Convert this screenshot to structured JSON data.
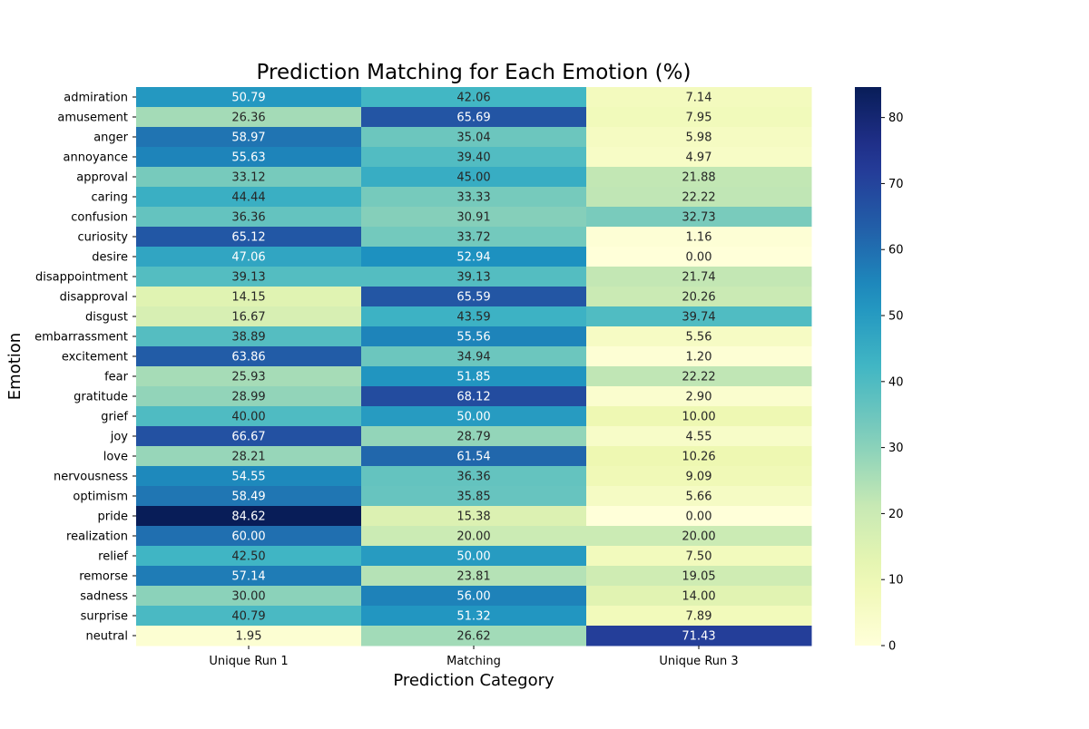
{
  "chart_data": {
    "type": "heatmap",
    "title": "Prediction Matching for Each Emotion (%)",
    "xlabel": "Prediction Category",
    "ylabel": "Emotion",
    "columns": [
      "Unique Run 1",
      "Matching",
      "Unique Run 3"
    ],
    "rows": [
      "admiration",
      "amusement",
      "anger",
      "annoyance",
      "approval",
      "caring",
      "confusion",
      "curiosity",
      "desire",
      "disappointment",
      "disapproval",
      "disgust",
      "embarrassment",
      "excitement",
      "fear",
      "gratitude",
      "grief",
      "joy",
      "love",
      "nervousness",
      "optimism",
      "pride",
      "realization",
      "relief",
      "remorse",
      "sadness",
      "surprise",
      "neutral"
    ],
    "values": [
      [
        50.79,
        42.06,
        7.14
      ],
      [
        26.36,
        65.69,
        7.95
      ],
      [
        58.97,
        35.04,
        5.98
      ],
      [
        55.63,
        39.4,
        4.97
      ],
      [
        33.12,
        45.0,
        21.88
      ],
      [
        44.44,
        33.33,
        22.22
      ],
      [
        36.36,
        30.91,
        32.73
      ],
      [
        65.12,
        33.72,
        1.16
      ],
      [
        47.06,
        52.94,
        0.0
      ],
      [
        39.13,
        39.13,
        21.74
      ],
      [
        14.15,
        65.59,
        20.26
      ],
      [
        16.67,
        43.59,
        39.74
      ],
      [
        38.89,
        55.56,
        5.56
      ],
      [
        63.86,
        34.94,
        1.2
      ],
      [
        25.93,
        51.85,
        22.22
      ],
      [
        28.99,
        68.12,
        2.9
      ],
      [
        40.0,
        50.0,
        10.0
      ],
      [
        66.67,
        28.79,
        4.55
      ],
      [
        28.21,
        61.54,
        10.26
      ],
      [
        54.55,
        36.36,
        9.09
      ],
      [
        58.49,
        35.85,
        5.66
      ],
      [
        84.62,
        15.38,
        0.0
      ],
      [
        60.0,
        20.0,
        20.0
      ],
      [
        42.5,
        50.0,
        7.5
      ],
      [
        57.14,
        23.81,
        19.05
      ],
      [
        30.0,
        56.0,
        14.0
      ],
      [
        40.79,
        51.32,
        7.89
      ],
      [
        1.95,
        26.62,
        71.43
      ]
    ],
    "colorbar": {
      "min": 0,
      "max": 84.62,
      "ticks": [
        0,
        10,
        20,
        30,
        40,
        50,
        60,
        70,
        80
      ],
      "colormap": "YlGnBu"
    },
    "value_format": "2 decimals"
  }
}
